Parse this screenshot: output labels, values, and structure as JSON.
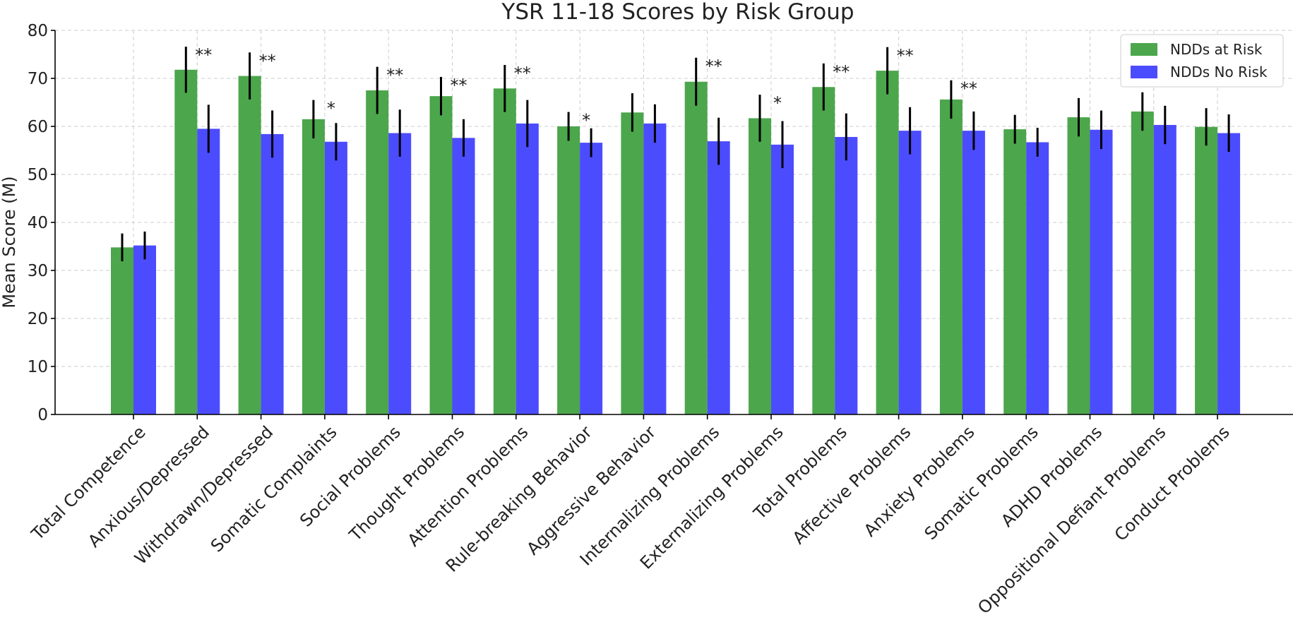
{
  "chart_data": {
    "type": "bar",
    "title": "YSR 11-18 Scores by Risk Group",
    "xlabel": "",
    "ylabel": "Mean Score (M)",
    "ylim": [
      0,
      80
    ],
    "yticks": [
      0,
      10,
      20,
      30,
      40,
      50,
      60,
      70,
      80
    ],
    "grid": true,
    "legend_position": "top-right",
    "categories": [
      "Total Competence",
      "Anxious/Depressed",
      "Withdrawn/Depressed",
      "Somatic Complaints",
      "Social Problems",
      "Thought Problems",
      "Attention Problems",
      "Rule-breaking Behavior",
      "Aggressive Behavior",
      "Internalizing Problems",
      "Externalizing Problems",
      "Total Problems",
      "Affective Problems",
      "Anxiety Problems",
      "Somatic Problems",
      "ADHD Problems",
      "Oppositional Defiant Problems",
      "Conduct Problems"
    ],
    "series": [
      {
        "name": "NDDs at Risk",
        "color": "#4ca64c",
        "values": [
          34.8,
          71.8,
          70.5,
          61.5,
          67.5,
          66.3,
          67.9,
          60.0,
          62.9,
          69.3,
          61.7,
          68.2,
          71.6,
          65.6,
          59.4,
          61.9,
          63.1,
          59.9
        ],
        "errors": [
          2.9,
          4.8,
          4.9,
          4.0,
          4.9,
          4.0,
          4.9,
          3.0,
          4.0,
          5.0,
          4.9,
          4.9,
          4.9,
          4.0,
          3.0,
          4.0,
          4.0,
          3.9
        ]
      },
      {
        "name": "NDDs No Risk",
        "color": "#4c4cff",
        "values": [
          35.2,
          59.5,
          58.4,
          56.8,
          58.6,
          57.6,
          60.6,
          56.6,
          60.6,
          56.9,
          56.2,
          57.8,
          59.1,
          59.1,
          56.7,
          59.3,
          60.3,
          58.6
        ],
        "errors": [
          2.9,
          5.0,
          4.9,
          3.9,
          4.9,
          3.9,
          4.9,
          3.0,
          4.0,
          4.9,
          4.9,
          4.9,
          4.9,
          4.0,
          3.0,
          4.0,
          4.0,
          3.9
        ]
      }
    ],
    "significance": [
      "",
      "**",
      "**",
      "*",
      "**",
      "**",
      "**",
      "*",
      "",
      "**",
      "*",
      "**",
      "**",
      "**",
      "",
      "",
      "",
      ""
    ]
  }
}
